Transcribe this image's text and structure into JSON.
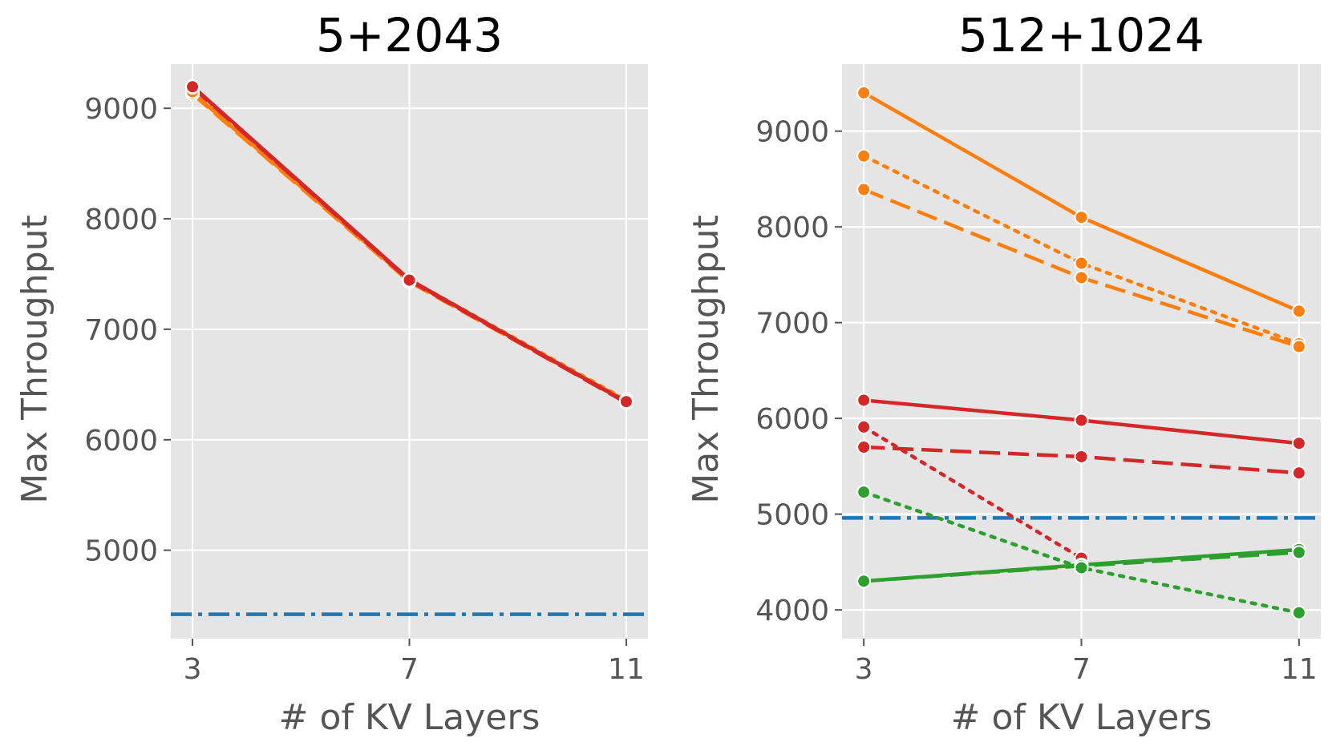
{
  "chart_data": [
    {
      "type": "line",
      "title": "5+2043",
      "xlabel": "# of KV Layers",
      "ylabel": "Max Throughput",
      "x": [
        3,
        7,
        11
      ],
      "xlim": [
        2.6,
        11.4
      ],
      "ylim": [
        4200,
        9400
      ],
      "xticks": [
        "3",
        "7",
        "11"
      ],
      "yticks": [
        "5000",
        "6000",
        "7000",
        "8000",
        "9000"
      ],
      "grid": true,
      "series": [
        {
          "color": "#ff7f0e",
          "dash": "solid",
          "values": [
            9140,
            7440,
            6350
          ]
        },
        {
          "color": "#ff7f0e",
          "dash": "dashed",
          "values": [
            9130,
            7430,
            6340
          ]
        },
        {
          "color": "#ff7f0e",
          "dash": "dotted",
          "values": [
            9150,
            7450,
            6360
          ]
        },
        {
          "color": "#d62728",
          "dash": "solid",
          "values": [
            9200,
            7450,
            6340
          ]
        },
        {
          "color": "#d62728",
          "dash": "dashed",
          "values": [
            9190,
            7440,
            6335
          ]
        },
        {
          "color": "#d62728",
          "dash": "dotted",
          "values": [
            9195,
            7445,
            6345
          ]
        }
      ],
      "baselines": [
        {
          "color": "#1f77b4",
          "dash": "dashdot",
          "value": 4420
        }
      ]
    },
    {
      "type": "line",
      "title": "512+1024",
      "xlabel": "# of KV Layers",
      "ylabel": "Max Throughput",
      "x": [
        3,
        7,
        11
      ],
      "xlim": [
        2.6,
        11.4
      ],
      "ylim": [
        3700,
        9700
      ],
      "xticks": [
        "3",
        "7",
        "11"
      ],
      "yticks": [
        "4000",
        "5000",
        "6000",
        "7000",
        "8000",
        "9000"
      ],
      "grid": true,
      "series": [
        {
          "color": "#ff7f0e",
          "dash": "solid",
          "values": [
            9400,
            8100,
            7120
          ]
        },
        {
          "color": "#ff7f0e",
          "dash": "dotted",
          "values": [
            8740,
            7620,
            6780
          ]
        },
        {
          "color": "#ff7f0e",
          "dash": "dashed",
          "values": [
            8390,
            7470,
            6750
          ]
        },
        {
          "color": "#d62728",
          "dash": "solid",
          "values": [
            6190,
            5980,
            5740
          ]
        },
        {
          "color": "#d62728",
          "dash": "dotted",
          "values": [
            5910,
            4540,
            null
          ]
        },
        {
          "color": "#d62728",
          "dash": "dashed",
          "values": [
            5700,
            5600,
            5430
          ]
        },
        {
          "color": "#2ca02c",
          "dash": "solid",
          "values": [
            4300,
            4470,
            4630
          ]
        },
        {
          "color": "#2ca02c",
          "dash": "dashed",
          "values": [
            4300,
            4460,
            4600
          ]
        },
        {
          "color": "#2ca02c",
          "dash": "dotted",
          "values": [
            5230,
            4440,
            3970
          ]
        }
      ],
      "baselines": [
        {
          "color": "#1f77b4",
          "dash": "dashdot",
          "value": 4960
        }
      ]
    }
  ]
}
